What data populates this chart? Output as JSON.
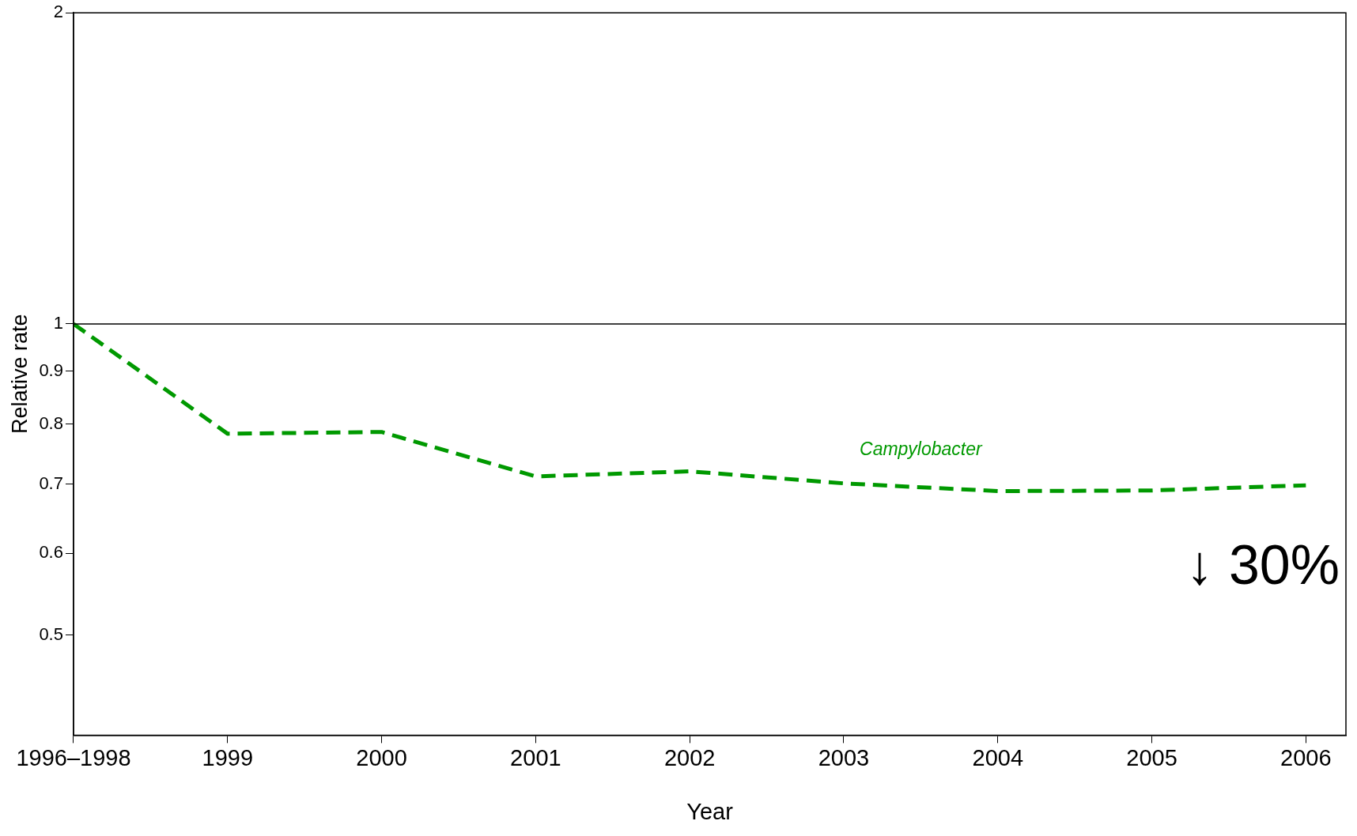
{
  "chart_data": {
    "type": "line",
    "xlabel": "Year",
    "ylabel": "Relative rate",
    "categories": [
      "1996–1998",
      "1999",
      "2000",
      "2001",
      "2002",
      "2003",
      "2004",
      "2005",
      "2006"
    ],
    "series": [
      {
        "name": "Campylobacter",
        "color": "#009900",
        "values": [
          1.0,
          0.783,
          0.786,
          0.712,
          0.72,
          0.701,
          0.689,
          0.69,
          0.698
        ]
      }
    ],
    "log": "y",
    "ylim": [
      0.4,
      2
    ],
    "yticks": [
      0.5,
      0.6,
      0.7,
      0.8,
      0.9,
      1,
      2
    ],
    "line_style": "dashed",
    "marker": "none",
    "grid": false,
    "legend": false,
    "ref_lines": [
      {
        "axis": "y",
        "value": 1,
        "color": "#000000"
      }
    ],
    "annotations": [
      "↓ 30%"
    ]
  }
}
